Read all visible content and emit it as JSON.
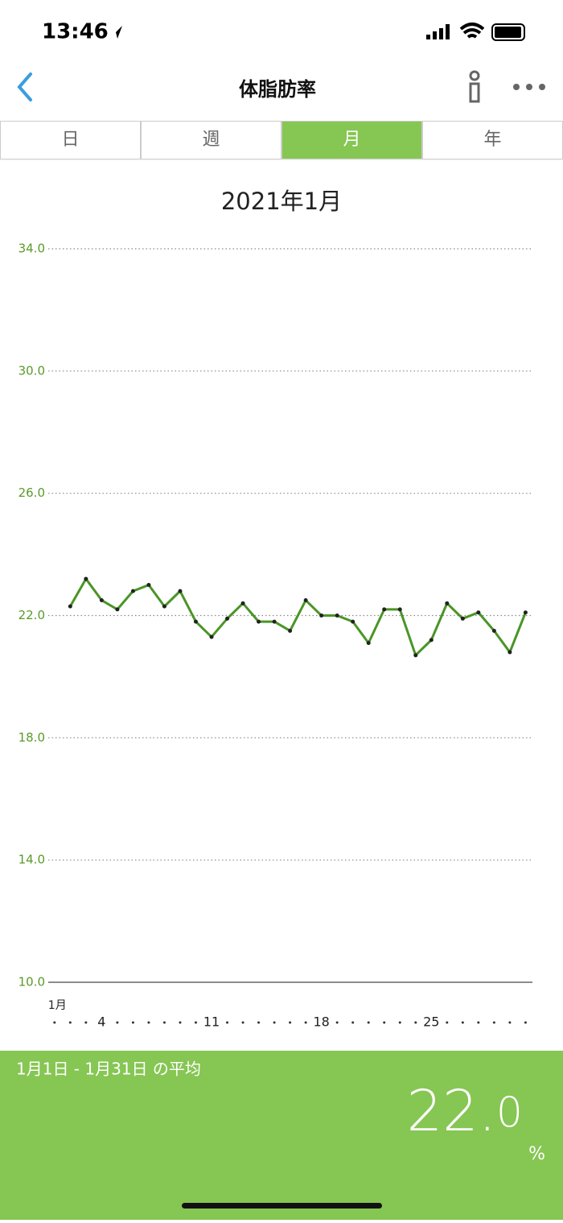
{
  "status_bar": {
    "time": "13:46"
  },
  "nav": {
    "title": "体脂肪率"
  },
  "tabs": {
    "items": [
      "日",
      "週",
      "月",
      "年"
    ],
    "active": 2
  },
  "chart_data": {
    "type": "line",
    "title": "2021年1月",
    "x": [
      2,
      3,
      4,
      5,
      6,
      7,
      8,
      9,
      10,
      11,
      12,
      13,
      14,
      15,
      16,
      17,
      18,
      19,
      20,
      21,
      22,
      23,
      24,
      25,
      26,
      27,
      28,
      29,
      30,
      31
    ],
    "values": [
      22.3,
      23.2,
      22.5,
      22.2,
      22.8,
      23.0,
      22.3,
      22.8,
      21.8,
      21.3,
      21.9,
      22.4,
      21.8,
      21.8,
      21.5,
      22.5,
      22.0,
      22.0,
      21.8,
      21.1,
      22.2,
      22.2,
      20.7,
      21.2,
      22.4,
      21.9,
      22.1,
      21.5,
      20.8,
      22.1
    ],
    "color": "#4a9526",
    "xlim": [
      0.6,
      31.44
    ],
    "xticks": [
      {
        "value": 1,
        "label": "1月"
      },
      4,
      11,
      18,
      25
    ],
    "ylim": [
      10,
      34
    ],
    "yticks": [
      {
        "value": 10,
        "label": "10.0"
      },
      {
        "value": 14,
        "label": "14.0"
      },
      {
        "value": 18,
        "label": "18.0"
      },
      {
        "value": 22,
        "label": "22.0"
      },
      {
        "value": 26,
        "label": "26.0"
      },
      {
        "value": 30,
        "label": "30.0"
      },
      {
        "value": 34,
        "label": "34.0"
      }
    ],
    "grid": true
  },
  "summary": {
    "label": "1月1日 - 1月31日 の平均",
    "value": "22.0",
    "unit": "%"
  }
}
